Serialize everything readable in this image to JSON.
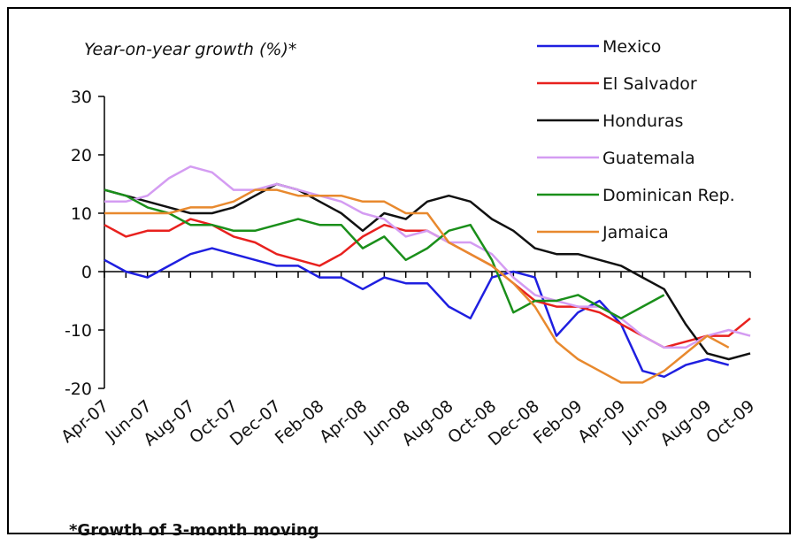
{
  "chart_data": {
    "type": "line",
    "title": "Year-on-year growth (%)*",
    "footnote": "*Growth of 3-month moving",
    "categories": [
      "Apr-07",
      null,
      "Jun-07",
      null,
      "Aug-07",
      null,
      "Oct-07",
      null,
      "Dec-07",
      null,
      "Feb-08",
      null,
      "Apr-08",
      null,
      "Jun-08",
      null,
      "Aug-08",
      null,
      "Oct-08",
      null,
      "Dec-08",
      null,
      "Feb-09",
      null,
      "Apr-09",
      null,
      "Jun-09",
      null,
      "Aug-09",
      null,
      "Oct-09"
    ],
    "series": [
      {
        "name": "Mexico",
        "color": "#1f1fe0",
        "values": [
          2,
          0,
          -1,
          1,
          3,
          4,
          3,
          2,
          1,
          1,
          -1,
          -1,
          -3,
          -1,
          -2,
          -2,
          -6,
          -8,
          -1,
          0,
          -1,
          -11,
          -7,
          -5,
          -9,
          -17,
          -18,
          -16,
          -15,
          -16,
          null
        ]
      },
      {
        "name": "El Salvador",
        "color": "#e8211e",
        "values": [
          8,
          6,
          7,
          7,
          9,
          8,
          6,
          5,
          3,
          2,
          1,
          3,
          6,
          8,
          7,
          7,
          5,
          3,
          1,
          -2,
          -5,
          -6,
          -6,
          -7,
          -9,
          -11,
          -13,
          -12,
          -11,
          -11,
          -8
        ]
      },
      {
        "name": "Honduras",
        "color": "#111111",
        "values": [
          14,
          13,
          12,
          11,
          10,
          10,
          11,
          13,
          15,
          14,
          12,
          10,
          7,
          10,
          9,
          12,
          13,
          12,
          9,
          7,
          4,
          3,
          3,
          2,
          1,
          -1,
          -3,
          -9,
          -14,
          -15,
          -14
        ]
      },
      {
        "name": "Guatemala",
        "color": "#d49cf2",
        "values": [
          12,
          12,
          13,
          16,
          18,
          17,
          14,
          14,
          15,
          14,
          13,
          12,
          10,
          9,
          6,
          7,
          5,
          5,
          3,
          -1,
          -4,
          -5,
          -6,
          -6,
          -8,
          -11,
          -13,
          -13,
          -11,
          -10,
          -11
        ]
      },
      {
        "name": "Dominican Rep.",
        "color": "#1a8f1a",
        "values": [
          14,
          13,
          11,
          10,
          8,
          8,
          7,
          7,
          8,
          9,
          8,
          8,
          4,
          6,
          2,
          4,
          7,
          8,
          2,
          -7,
          -5,
          -5,
          -4,
          -6,
          -8,
          -6,
          -4,
          null,
          null,
          null,
          null
        ]
      },
      {
        "name": "Jamaica",
        "color": "#e8892e",
        "values": [
          10,
          10,
          10,
          10,
          11,
          11,
          12,
          14,
          14,
          13,
          13,
          13,
          12,
          12,
          10,
          10,
          5,
          3,
          1,
          -2,
          -6,
          -12,
          -15,
          -17,
          -19,
          -19,
          -17,
          -14,
          -11,
          -13,
          null
        ]
      }
    ],
    "ylim": [
      -20,
      30
    ],
    "yticks": [
      -20,
      -10,
      0,
      10,
      20,
      30
    ],
    "legend": "top-right"
  }
}
